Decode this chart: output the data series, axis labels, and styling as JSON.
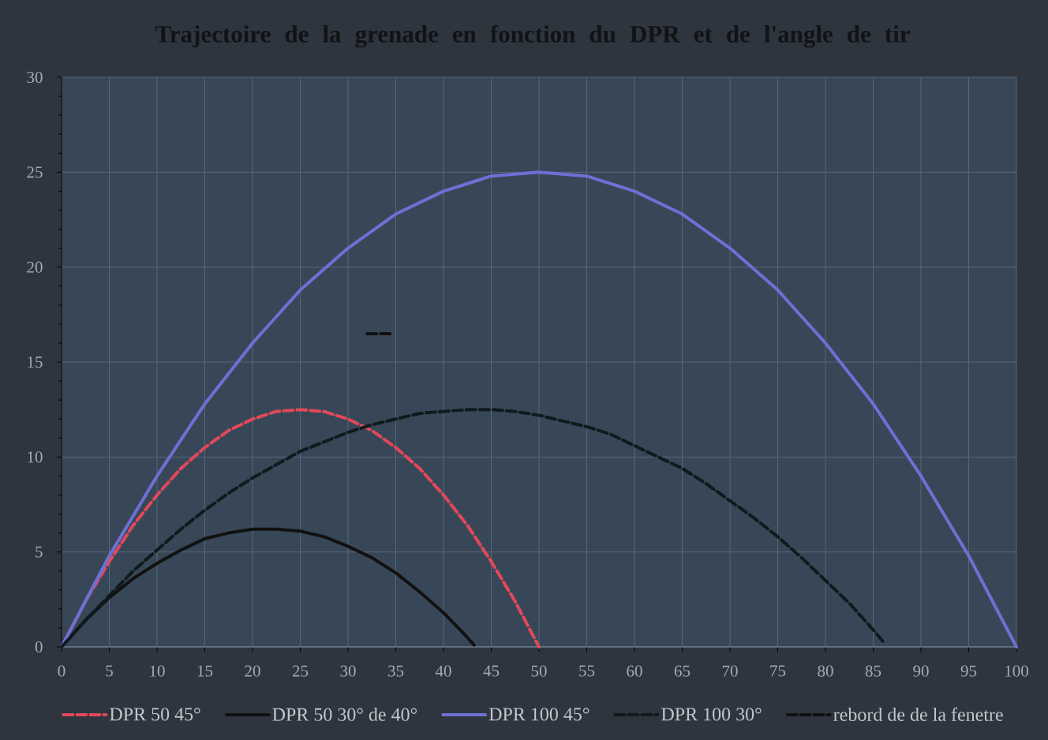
{
  "chart_data": {
    "type": "line",
    "title": "Trajectoire de la grenade en fonction du DPR et de l'angle de tir",
    "xlim": [
      0,
      100
    ],
    "xticks": [
      0,
      5,
      10,
      15,
      20,
      25,
      30,
      35,
      40,
      45,
      50,
      55,
      60,
      65,
      70,
      75,
      80,
      85,
      90,
      95,
      100
    ],
    "ylim": [
      0,
      30
    ],
    "yticks": [
      0,
      5,
      10,
      15,
      20,
      25,
      30
    ],
    "grid": true,
    "legend": "bottom",
    "series": [
      {
        "name": "DPR 50 45°",
        "color": "#e2485a",
        "line_style": "dashed",
        "x": [
          0,
          2.5,
          5,
          7.5,
          10,
          12.5,
          15,
          17.5,
          20,
          22.5,
          25,
          27.5,
          30,
          32.5,
          35,
          37.5,
          40,
          42.5,
          45,
          47.5,
          50
        ],
        "values": [
          0,
          2.4,
          4.5,
          6.4,
          8,
          9.4,
          10.5,
          11.4,
          12,
          12.4,
          12.5,
          12.4,
          12,
          11.4,
          10.5,
          9.4,
          8,
          6.4,
          4.5,
          2.4,
          0
        ]
      },
      {
        "name": "DPR 50 30° de 40°",
        "color": "#111111",
        "line_style": "solid",
        "x": [
          0,
          2.5,
          5,
          7.5,
          10,
          12.5,
          15,
          17.5,
          20,
          22.5,
          25,
          27.5,
          30,
          32.5,
          35,
          37.5,
          40,
          42.5,
          43.2
        ],
        "values": [
          0,
          1.4,
          2.6,
          3.6,
          4.4,
          5.1,
          5.7,
          6.0,
          6.2,
          6.2,
          6.1,
          5.8,
          5.3,
          4.7,
          3.9,
          2.9,
          1.8,
          0.5,
          0.1
        ]
      },
      {
        "name": "DPR 100 45°",
        "color": "#6d70d4",
        "line_style": "solid",
        "x": [
          0,
          2.5,
          5,
          7.5,
          10,
          12.5,
          15,
          17.5,
          20,
          22.5,
          25,
          27.5,
          30,
          32.5,
          35,
          37.5,
          40,
          42.5,
          45,
          47.5,
          50,
          52.5,
          55,
          57.5,
          60,
          62.5,
          65,
          67.5,
          70,
          72.5,
          75,
          77.5,
          80,
          82.5,
          85,
          87.5,
          90,
          92.5,
          95,
          97.5,
          100
        ],
        "values": [
          0,
          2.4,
          4.8,
          6.9,
          9,
          10.9,
          12.8,
          14.4,
          16,
          17.4,
          18.8,
          19.9,
          21,
          21.9,
          22.8,
          23.4,
          24,
          24.4,
          24.8,
          24.9,
          25,
          24.9,
          24.8,
          24.4,
          24,
          23.4,
          22.8,
          21.9,
          21,
          19.9,
          18.8,
          17.4,
          16,
          14.4,
          12.8,
          10.9,
          9,
          6.9,
          4.8,
          2.4,
          0
        ]
      },
      {
        "name": "DPR 100 30°",
        "color": "#0f1a1c",
        "line_style": "dashed",
        "x": [
          0,
          2.5,
          5,
          7.5,
          10,
          12.5,
          15,
          17.5,
          20,
          22.5,
          25,
          27.5,
          30,
          32.5,
          35,
          37.5,
          40,
          42.5,
          45,
          47.5,
          50,
          52.5,
          55,
          57.5,
          60,
          62.5,
          65,
          67.5,
          70,
          72.5,
          75,
          77.5,
          80,
          82.5,
          85,
          86
        ],
        "values": [
          0,
          1.4,
          2.7,
          4.0,
          5.1,
          6.2,
          7.2,
          8.1,
          8.9,
          9.6,
          10.3,
          10.8,
          11.3,
          11.7,
          12.0,
          12.3,
          12.4,
          12.5,
          12.5,
          12.4,
          12.2,
          11.9,
          11.6,
          11.2,
          10.6,
          10.0,
          9.4,
          8.6,
          7.7,
          6.8,
          5.8,
          4.7,
          3.5,
          2.3,
          0.9,
          0.3
        ]
      },
      {
        "name": "rebord de de la fenetre",
        "color": "#111111",
        "line_style": "dashed",
        "x": [
          32,
          34.5
        ],
        "values": [
          16.5,
          16.5
        ]
      }
    ]
  }
}
